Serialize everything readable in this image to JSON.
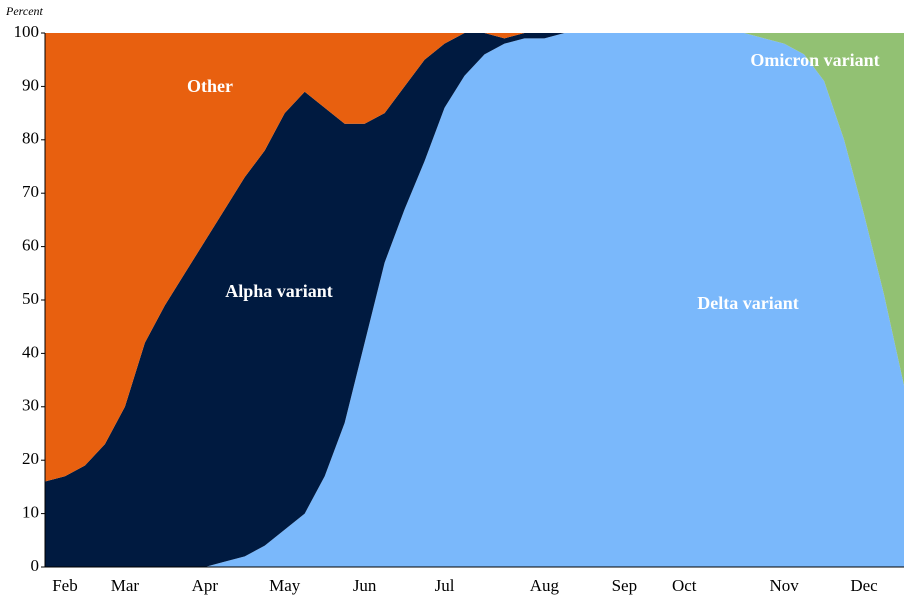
{
  "chart_data": {
    "type": "stacked_area",
    "y_axis_label": "Percent",
    "categories": [
      null,
      "Feb",
      null,
      null,
      "Mar",
      null,
      null,
      null,
      "Apr",
      null,
      null,
      null,
      "May",
      null,
      null,
      null,
      "Jun",
      null,
      null,
      null,
      "Jul",
      null,
      null,
      null,
      null,
      "Aug",
      null,
      null,
      null,
      "Sep",
      null,
      null,
      "Oct",
      null,
      null,
      null,
      null,
      "Nov",
      null,
      null,
      null,
      "Dec",
      null,
      null
    ],
    "series": [
      {
        "name": "Delta variant",
        "color": "#7ab8fb",
        "values": [
          0,
          0,
          0,
          0,
          0,
          0,
          0,
          0,
          0,
          1,
          2,
          4,
          7,
          10,
          17,
          27,
          42,
          57,
          67,
          76,
          86,
          92,
          96,
          98,
          99,
          99,
          100,
          100,
          100,
          100,
          100,
          100,
          100,
          100,
          100,
          100,
          99,
          98,
          96,
          91,
          80,
          66,
          51,
          34
        ]
      },
      {
        "name": "Alpha variant",
        "color": "#001a40",
        "values": [
          16,
          17,
          19,
          23,
          30,
          42,
          49,
          55,
          61,
          66,
          71,
          74,
          78,
          79,
          69,
          56,
          41,
          28,
          23,
          19,
          12,
          8,
          4,
          1,
          1,
          1,
          0,
          0,
          0,
          0,
          0,
          0,
          0,
          0,
          0,
          0,
          0,
          0,
          0,
          0,
          0,
          0,
          0,
          0
        ]
      },
      {
        "name": "Other",
        "color": "#e8600f",
        "values": [
          84,
          83,
          81,
          77,
          70,
          58,
          51,
          45,
          39,
          33,
          27,
          22,
          15,
          11,
          14,
          17,
          17,
          15,
          10,
          5,
          2,
          0,
          0,
          1,
          0,
          0,
          0,
          0,
          0,
          0,
          0,
          0,
          0,
          0,
          0,
          0,
          0,
          0,
          0,
          0,
          0,
          0,
          0,
          0
        ]
      },
      {
        "name": "Omicron variant",
        "color": "#92c173",
        "values": [
          0,
          0,
          0,
          0,
          0,
          0,
          0,
          0,
          0,
          0,
          0,
          0,
          0,
          0,
          0,
          0,
          0,
          0,
          0,
          0,
          0,
          0,
          0,
          0,
          0,
          0,
          0,
          0,
          0,
          0,
          0,
          0,
          0,
          0,
          0,
          0,
          1,
          2,
          4,
          9,
          20,
          34,
          49,
          66
        ]
      }
    ],
    "ylim": [
      0,
      100
    ],
    "yticks": [
      0,
      10,
      20,
      30,
      40,
      50,
      60,
      70,
      80,
      90,
      100
    ]
  }
}
